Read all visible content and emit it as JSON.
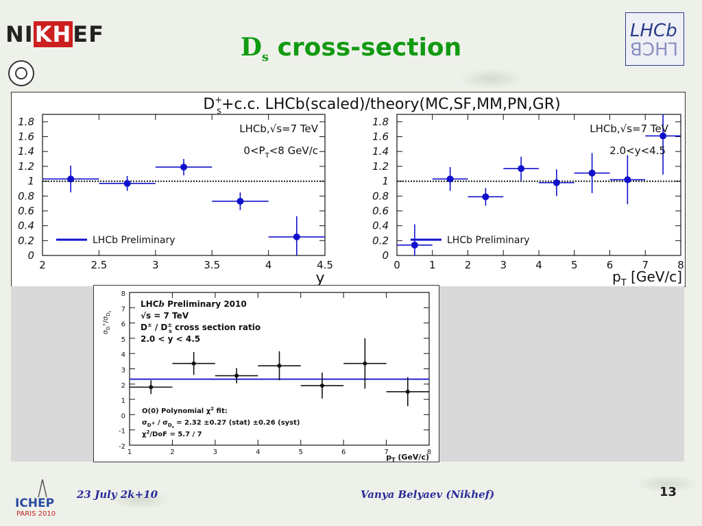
{
  "slide": {
    "title_main": "D",
    "title_sub": "s",
    "title_rest": " cross-section",
    "logo_left": "NIKHEF",
    "logo_left_parts": [
      "NI",
      "KH",
      "EF"
    ],
    "logo_right_top": "LHCb",
    "logo_right_bottom": "ꓭƆHꓶ",
    "footer_date": "23 July 2k+10",
    "footer_author": "Vanya Belyaev (Nikhef)",
    "page_number": "13",
    "logo_bottom_left": "ICHEP",
    "logo_bottom_left_sub": "PARIS 2010"
  },
  "colors": {
    "title": "#129a12",
    "footer": "#2a2a9a",
    "series_blue": "#1010cc",
    "series_black": "#111111",
    "fit_line": "#2222cc"
  },
  "chart_data": [
    {
      "type": "scatter",
      "title": "D_s^+ + c.c. LHCb(scaled)/theory(MC,SF,MM,PN,GR)",
      "panel_title_main": "D",
      "panel_title_sup": "+",
      "panel_title_sub": "s",
      "panel_title_rest": "+c.c. LHCb(scaled)/theory(MC,SF,MM,PN,GR)",
      "xlabel": "y",
      "ylabel": "",
      "xlim": [
        2,
        4.5
      ],
      "ylim": [
        0,
        1.9
      ],
      "xticks": [
        2,
        2.5,
        3,
        3.5,
        4,
        4.5
      ],
      "xtick_labels": [
        "2",
        "2.5",
        "3",
        "3.5",
        "4",
        "4.5"
      ],
      "yticks": [
        0,
        0.2,
        0.4,
        0.6,
        0.8,
        1,
        1.2,
        1.4,
        1.6,
        1.8
      ],
      "ytick_labels": [
        "0",
        "0.2",
        "0.4",
        "0.6",
        "0.8",
        "1",
        "1.2",
        "1.4",
        "1.6",
        "1.8"
      ],
      "reference_line": 1,
      "annotations": [
        "LHCb,√s=7 TeV",
        "0<P_T<8 GeV/c"
      ],
      "annotation_lines": [
        {
          "text": "LHCb,√s=7 TeV"
        },
        {
          "pre": "0<P",
          "sub": "T",
          "post": "<8 GeV/c"
        }
      ],
      "legend": "LHCb Preliminary",
      "legend_position": "bottom-left",
      "series": [
        {
          "x": [
            2.25,
            2.75,
            3.25,
            3.75,
            4.25
          ],
          "y": [
            1.03,
            0.97,
            1.19,
            0.73,
            0.25
          ],
          "xerr": [
            0.25,
            0.25,
            0.25,
            0.25,
            0.25
          ],
          "yerr": [
            0.18,
            0.1,
            0.11,
            0.12,
            0.28
          ]
        }
      ]
    },
    {
      "type": "scatter",
      "title": "",
      "xlabel": "p_T [GeV/c]",
      "xlabel_main": "p",
      "xlabel_sub": "T",
      "xlabel_rest": " [GeV/c]",
      "ylabel": "",
      "xlim": [
        0,
        8
      ],
      "ylim": [
        0,
        1.9
      ],
      "xticks": [
        0,
        1,
        2,
        3,
        4,
        5,
        6,
        7,
        8
      ],
      "xtick_labels": [
        "0",
        "1",
        "2",
        "3",
        "4",
        "5",
        "6",
        "7",
        "8"
      ],
      "yticks": [
        0,
        0.2,
        0.4,
        0.6,
        0.8,
        1,
        1.2,
        1.4,
        1.6,
        1.8
      ],
      "ytick_labels": [
        "0",
        "0.2",
        "0.4",
        "0.6",
        "0.8",
        "1",
        "1.2",
        "1.4",
        "1.6",
        "1.8"
      ],
      "reference_line": 1,
      "annotations": [
        "LHCb,√s=7 TeV",
        "2.0<y<4.5"
      ],
      "legend": "LHCb Preliminary",
      "legend_position": "bottom-left",
      "series": [
        {
          "x": [
            0.5,
            1.5,
            2.5,
            3.5,
            4.5,
            5.5,
            6.5,
            7.5
          ],
          "y": [
            0.14,
            1.03,
            0.79,
            1.17,
            0.98,
            1.11,
            1.02,
            1.61
          ],
          "xerr": [
            0.5,
            0.5,
            0.5,
            0.5,
            0.5,
            0.5,
            0.5,
            0.5
          ],
          "yerr": [
            0.28,
            0.16,
            0.12,
            0.16,
            0.18,
            0.27,
            0.33,
            0.52
          ]
        }
      ]
    },
    {
      "type": "scatter",
      "title": "",
      "ylabel": "σ_D+/σ_Ds",
      "ylabel_parts": {
        "sig1": "σ",
        "sub1": "D",
        "sup1": "+",
        "slash": "/",
        "sig2": "σ",
        "sub2": "D",
        "subsub2": "s"
      },
      "xlabel": "p_T (GeV/c)",
      "xlabel_main": "p",
      "xlabel_sub": "T",
      "xlabel_rest": " (GeV/c)",
      "xlim": [
        1,
        8
      ],
      "ylim": [
        -2,
        8
      ],
      "xticks": [
        1,
        2,
        3,
        4,
        5,
        6,
        7,
        8
      ],
      "xtick_labels": [
        "1",
        "2",
        "3",
        "4",
        "5",
        "6",
        "7",
        "8"
      ],
      "yticks": [
        -2,
        -1,
        0,
        1,
        2,
        3,
        4,
        5,
        6,
        7,
        8
      ],
      "ytick_labels": [
        "-2",
        "-1",
        "0",
        "1",
        "2",
        "3",
        "4",
        "5",
        "6",
        "7",
        "8"
      ],
      "annotations": [
        "LHCb Preliminary 2010",
        "√s = 7 TeV",
        "D± / D±s cross section ratio",
        "2.0 < y < 4.5"
      ],
      "annotation_lines": [
        {
          "pre": "LHC",
          "italic": "b",
          "post": " Preliminary 2010"
        },
        {
          "text": "√s = 7 TeV"
        },
        {
          "pre": "D",
          "sup": "±",
          "mid": " / D",
          "sup2": "±",
          "sub2": "s",
          "post": " cross section ratio"
        },
        {
          "text": "2.0 < y < 4.5"
        }
      ],
      "fit_text": [
        "O(0) Polynomial χ² fit:",
        "σD+ / σDs = 2.32 ±0.27 (stat) ±0.26 (syst)",
        "χ²/DoF = 5.7 / 7"
      ],
      "fit_lines": [
        {
          "pre": "O(0) Polynomial χ",
          "sup": "2",
          "post": " fit:"
        },
        {
          "pre": "σ",
          "sub": "D",
          "subsup": "+",
          "mid": " / σ",
          "sub2": "D",
          "subsub2": "s",
          "post": " = 2.32 ±0.27 (stat) ±0.26 (syst)"
        },
        {
          "pre": "χ",
          "sup": "2",
          "post": "/DoF = 5.7 / 7"
        }
      ],
      "fit_value": 2.32,
      "series": [
        {
          "x": [
            1.5,
            2.5,
            3.5,
            4.5,
            5.5,
            6.5,
            7.5
          ],
          "y": [
            1.8,
            3.35,
            2.55,
            3.2,
            1.9,
            3.35,
            1.5
          ],
          "xerr": [
            0.5,
            0.5,
            0.5,
            0.5,
            0.5,
            0.5,
            0.5
          ],
          "yerr": [
            0.45,
            0.75,
            0.5,
            0.95,
            0.85,
            1.65,
            0.95
          ]
        }
      ]
    }
  ]
}
